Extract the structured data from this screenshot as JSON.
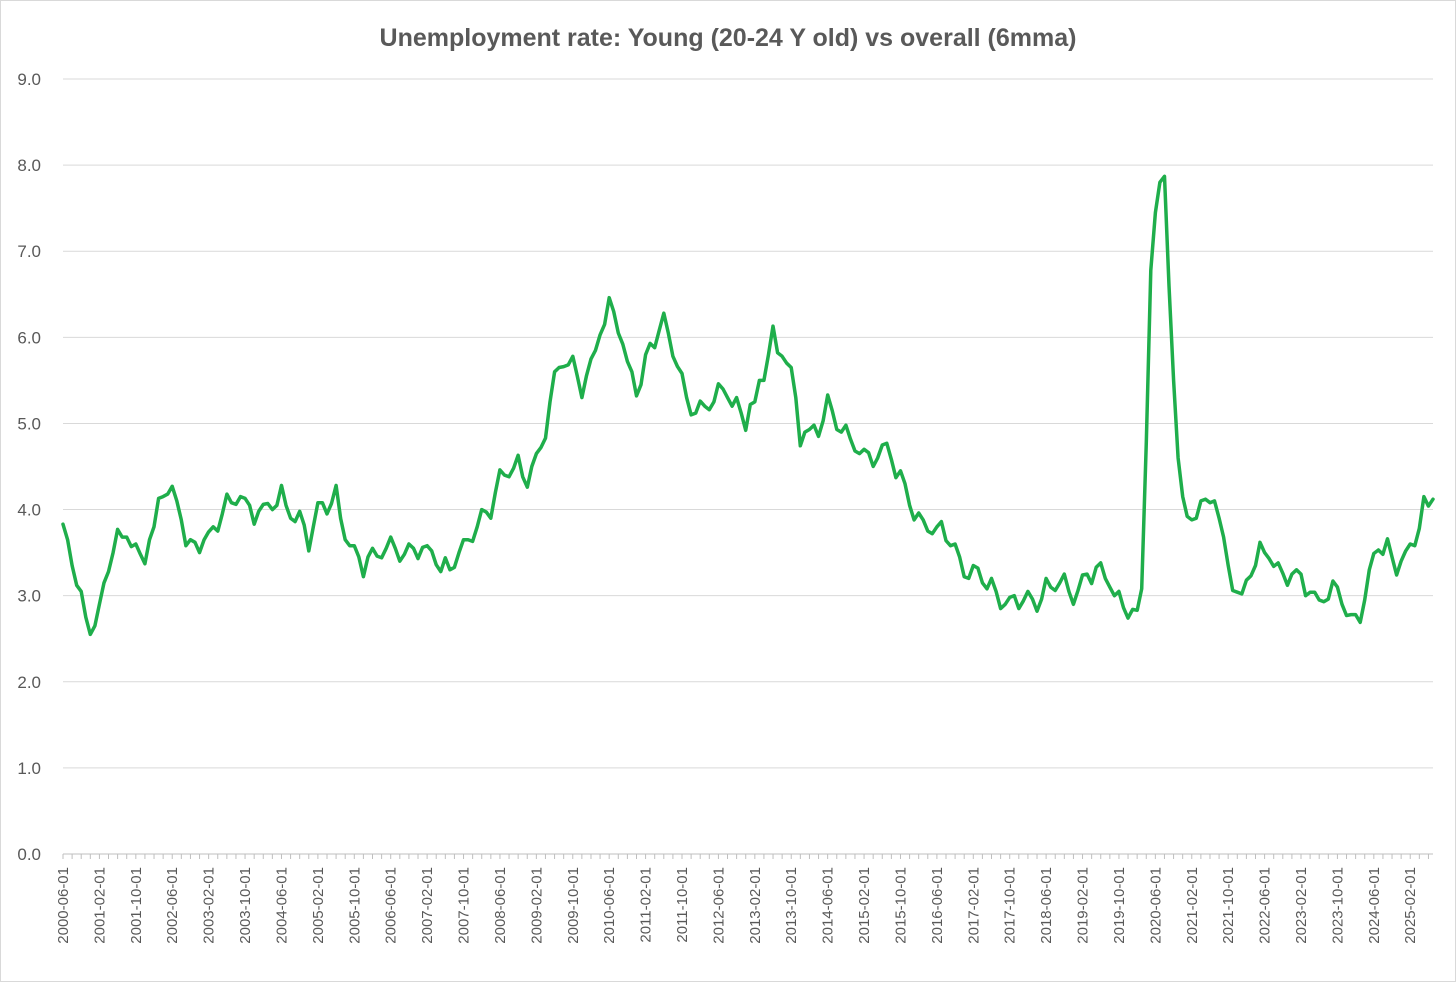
{
  "chart_data": {
    "type": "line",
    "title": "Unemployment rate: Young (20-24 Y old) vs overall (6mma)",
    "xlabel": "",
    "ylabel": "",
    "ylim": [
      0,
      9
    ],
    "yticks": [
      "0.0",
      "1.0",
      "2.0",
      "3.0",
      "4.0",
      "5.0",
      "6.0",
      "7.0",
      "8.0",
      "9.0"
    ],
    "grid": true,
    "legend": "none",
    "line_color": "#1fae4b",
    "x_start": "2000-06-01",
    "x_end": "2025-07-01",
    "x_tick_labels": [
      "2000-06-01",
      "2001-02-01",
      "2001-10-01",
      "2002-06-01",
      "2003-02-01",
      "2003-10-01",
      "2004-06-01",
      "2005-02-01",
      "2005-10-01",
      "2006-06-01",
      "2007-02-01",
      "2007-10-01",
      "2008-06-01",
      "2009-02-01",
      "2009-10-01",
      "2010-06-01",
      "2011-02-01",
      "2011-10-01",
      "2012-06-01",
      "2013-02-01",
      "2013-10-01",
      "2014-06-01",
      "2015-02-01",
      "2015-10-01",
      "2016-06-01",
      "2017-02-01",
      "2017-10-01",
      "2018-06-01",
      "2019-02-01",
      "2019-10-01",
      "2020-06-01",
      "2021-02-01",
      "2021-10-01",
      "2022-06-01",
      "2023-02-01",
      "2023-10-01",
      "2024-06-01",
      "2025-02-01"
    ],
    "series": [
      {
        "name": "Young (20-24 Y old)",
        "monthly_values": [
          3.83,
          3.65,
          3.35,
          3.12,
          3.05,
          2.75,
          2.55,
          2.65,
          2.9,
          3.15,
          3.28,
          3.5,
          3.77,
          3.68,
          3.68,
          3.57,
          3.6,
          3.48,
          3.37,
          3.65,
          3.8,
          4.13,
          4.15,
          4.18,
          4.27,
          4.1,
          3.88,
          3.58,
          3.65,
          3.62,
          3.5,
          3.65,
          3.74,
          3.8,
          3.75,
          3.95,
          4.18,
          4.08,
          4.06,
          4.15,
          4.13,
          4.05,
          3.83,
          3.98,
          4.06,
          4.07,
          4.0,
          4.05,
          4.28,
          4.05,
          3.9,
          3.86,
          3.98,
          3.82,
          3.52,
          3.8,
          4.08,
          4.08,
          3.95,
          4.07,
          4.28,
          3.9,
          3.65,
          3.58,
          3.58,
          3.45,
          3.22,
          3.45,
          3.55,
          3.46,
          3.44,
          3.55,
          3.68,
          3.55,
          3.4,
          3.48,
          3.6,
          3.55,
          3.43,
          3.56,
          3.58,
          3.52,
          3.36,
          3.28,
          3.44,
          3.3,
          3.33,
          3.5,
          3.65,
          3.65,
          3.63,
          3.8,
          4.0,
          3.97,
          3.9,
          4.2,
          4.46,
          4.4,
          4.38,
          4.48,
          4.63,
          4.38,
          4.26,
          4.5,
          4.65,
          4.72,
          4.83,
          5.25,
          5.6,
          5.65,
          5.66,
          5.68,
          5.78,
          5.55,
          5.3,
          5.55,
          5.75,
          5.85,
          6.03,
          6.15,
          6.46,
          6.3,
          6.05,
          5.92,
          5.72,
          5.6,
          5.32,
          5.45,
          5.8,
          5.93,
          5.88,
          6.08,
          6.28,
          6.05,
          5.78,
          5.66,
          5.58,
          5.3,
          5.1,
          5.12,
          5.26,
          5.2,
          5.16,
          5.25,
          5.46,
          5.4,
          5.3,
          5.2,
          5.3,
          5.12,
          4.92,
          5.22,
          5.25,
          5.5,
          5.5,
          5.8,
          6.13,
          5.82,
          5.78,
          5.7,
          5.65,
          5.3,
          4.74,
          4.9,
          4.93,
          4.98,
          4.85,
          5.03,
          5.33,
          5.15,
          4.93,
          4.9,
          4.98,
          4.82,
          4.68,
          4.65,
          4.7,
          4.66,
          4.5,
          4.6,
          4.75,
          4.77,
          4.58,
          4.37,
          4.45,
          4.3,
          4.05,
          3.88,
          3.96,
          3.88,
          3.75,
          3.72,
          3.8,
          3.86,
          3.64,
          3.58,
          3.6,
          3.45,
          3.22,
          3.2,
          3.35,
          3.32,
          3.15,
          3.08,
          3.2,
          3.05,
          2.85,
          2.9,
          2.98,
          3.0,
          2.85,
          2.94,
          3.05,
          2.96,
          2.82,
          2.96,
          3.2,
          3.1,
          3.06,
          3.15,
          3.25,
          3.05,
          2.9,
          3.06,
          3.24,
          3.25,
          3.14,
          3.33,
          3.38,
          3.2,
          3.1,
          3.0,
          3.05,
          2.86,
          2.74,
          2.84,
          2.83,
          3.08,
          4.78,
          6.78,
          7.45,
          7.8,
          7.87,
          6.6,
          5.5,
          4.6,
          4.15,
          3.92,
          3.88,
          3.9,
          4.1,
          4.12,
          4.08,
          4.1,
          3.9,
          3.68,
          3.35,
          3.06,
          3.04,
          3.02,
          3.18,
          3.23,
          3.35,
          3.62,
          3.5,
          3.43,
          3.34,
          3.38,
          3.26,
          3.12,
          3.25,
          3.3,
          3.25,
          3.0,
          3.04,
          3.04,
          2.95,
          2.93,
          2.96,
          3.17,
          3.1,
          2.9,
          2.77,
          2.78,
          2.78,
          2.69,
          2.95,
          3.3,
          3.49,
          3.53,
          3.48,
          3.66,
          3.45,
          3.24,
          3.4,
          3.52,
          3.6,
          3.58,
          3.78,
          4.15,
          4.04,
          4.12
        ]
      }
    ]
  }
}
